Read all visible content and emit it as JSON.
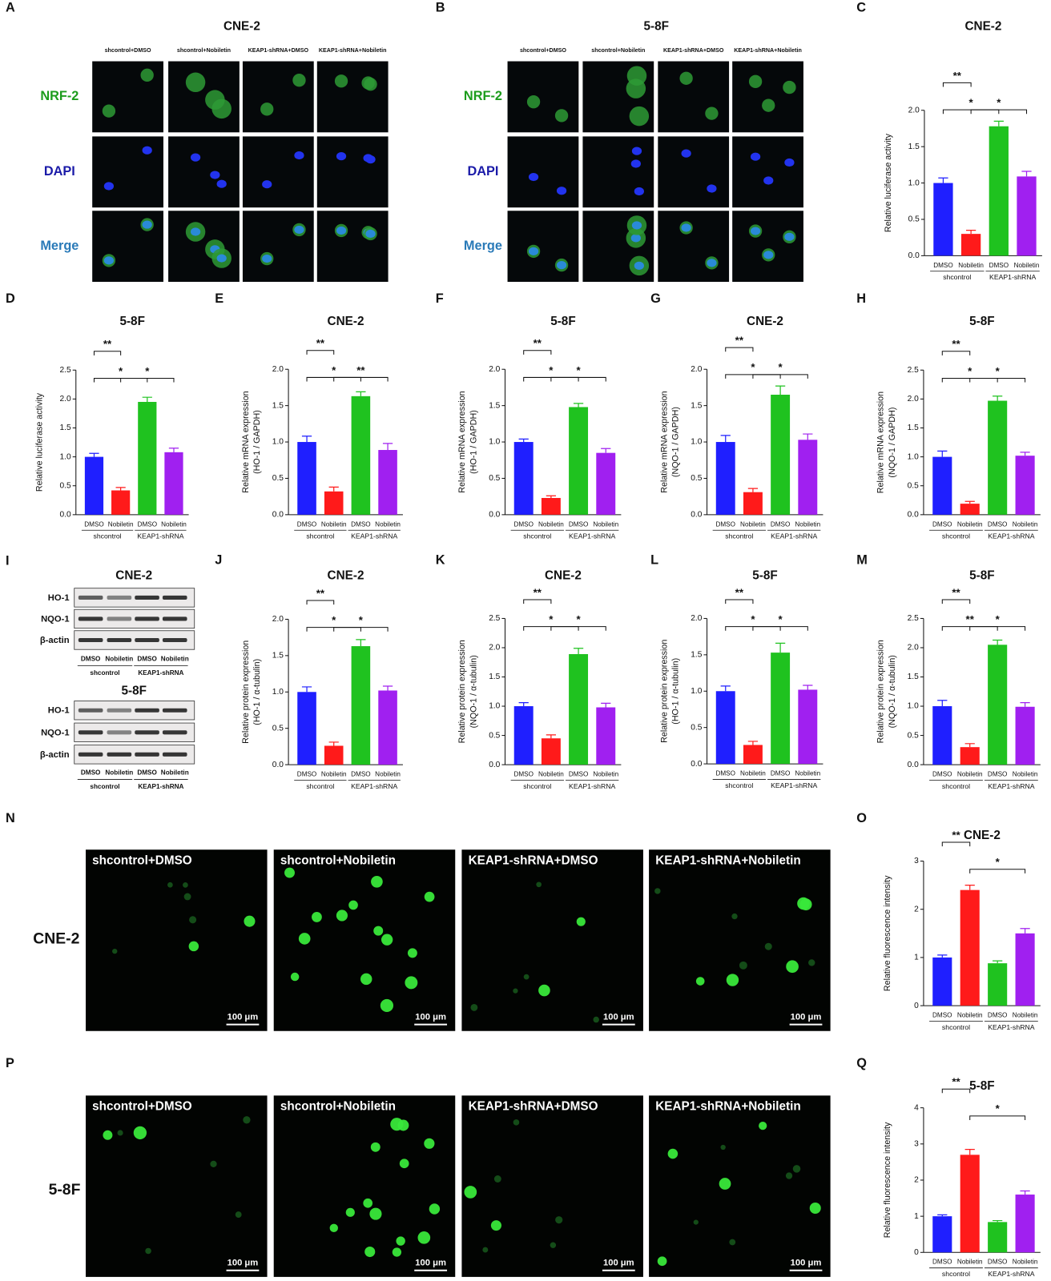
{
  "image_panels": [
    {
      "panel": "A",
      "title": "CNE-2",
      "columns": [
        "shcontrol+DMSO",
        "shcontrol+Nobiletin",
        "KEAP1-shRNA+DMSO",
        "KEAP1-shRNA+Nobiletin"
      ],
      "rows": [
        "NRF-2",
        "DAPI",
        "Merge"
      ]
    },
    {
      "panel": "B",
      "title": "5-8F",
      "columns": [
        "shcontrol+DMSO",
        "shcontrol+Nobiletin",
        "KEAP1-shRNA+DMSO",
        "KEAP1-shRNA+Nobiletin"
      ],
      "rows": [
        "NRF-2",
        "DAPI",
        "Merge"
      ]
    }
  ],
  "western_blot": {
    "panel": "I",
    "blots": [
      {
        "title": "CNE-2",
        "bands": [
          "HO-1",
          "NQO-1",
          "β-actin"
        ]
      },
      {
        "title": "5-8F",
        "bands": [
          "HO-1",
          "NQO-1",
          "β-actin"
        ]
      }
    ],
    "lanes": [
      "DMSO",
      "Nobiletin",
      "DMSO",
      "Nobiletin"
    ],
    "groups": [
      "shcontrol",
      "KEAP1-shRNA"
    ]
  },
  "fluorescence_panels": [
    {
      "panel": "N",
      "row_label": "CNE-2",
      "columns": [
        "shcontrol+DMSO",
        "shcontrol+Nobiletin",
        "KEAP1-shRNA+DMSO",
        "KEAP1-shRNA+Nobiletin"
      ],
      "scale_bar": "100 μm"
    },
    {
      "panel": "P",
      "row_label": "5-8F",
      "columns": [
        "shcontrol+DMSO",
        "shcontrol+Nobiletin",
        "KEAP1-shRNA+DMSO",
        "KEAP1-shRNA+Nobiletin"
      ],
      "scale_bar": "100 μm"
    }
  ],
  "chart_data": [
    {
      "type": "bar",
      "panel": "C",
      "title": "CNE-2",
      "ylabel": [
        "Relative luciferase activity"
      ],
      "categories": [
        "DMSO",
        "Nobiletin",
        "DMSO",
        "Nobiletin"
      ],
      "groups": [
        "shcontrol",
        "KEAP1-shRNA"
      ],
      "values": [
        1.0,
        0.3,
        1.78,
        1.09
      ],
      "errors": [
        0.07,
        0.05,
        0.07,
        0.07
      ],
      "colors": [
        "#1f1fff",
        "#ff1a1a",
        "#1fc21f",
        "#a020f0"
      ],
      "ylim": [
        0,
        2
      ],
      "yticks": [
        {
          "value": 0,
          "label": "0.0"
        },
        0.5,
        {
          "value": 1,
          "label": "1.0"
        },
        1.5,
        {
          "value": 2,
          "label": "2.0"
        }
      ],
      "comparisons": [
        {
          "bars": [
            0,
            1
          ],
          "label": "**"
        },
        {
          "bars": [
            1,
            3
          ],
          "label": "*"
        },
        {
          "bars": [
            0,
            2
          ],
          "label": "*"
        }
      ]
    },
    {
      "type": "bar",
      "panel": "D",
      "title": "5-8F",
      "ylabel": [
        "Relative luciferase activity"
      ],
      "categories": [
        "DMSO",
        "Nobiletin",
        "DMSO",
        "Nobiletin"
      ],
      "groups": [
        "shcontrol",
        "KEAP1-shRNA"
      ],
      "values": [
        1.0,
        0.42,
        1.95,
        1.08
      ],
      "errors": [
        0.06,
        0.05,
        0.08,
        0.07
      ],
      "colors": [
        "#1f1fff",
        "#ff1a1a",
        "#1fc21f",
        "#a020f0"
      ],
      "ylim": [
        0,
        2.5
      ],
      "yticks": [
        {
          "value": 0,
          "label": "0.0"
        },
        0.5,
        {
          "value": 1,
          "label": "1.0"
        },
        1.5,
        {
          "value": 2,
          "label": "2.0"
        },
        2.5
      ],
      "comparisons": [
        {
          "bars": [
            0,
            1
          ],
          "label": "**"
        },
        {
          "bars": [
            1,
            3
          ],
          "label": "*"
        },
        {
          "bars": [
            0,
            2
          ],
          "label": "*"
        }
      ]
    },
    {
      "type": "bar",
      "panel": "E",
      "title": "CNE-2",
      "ylabel": [
        "Relative mRNA expression",
        "(HO-1 / GAPDH)"
      ],
      "categories": [
        "DMSO",
        "Nobiletin",
        "DMSO",
        "Nobiletin"
      ],
      "groups": [
        "shcontrol",
        "KEAP1-shRNA"
      ],
      "values": [
        1.0,
        0.32,
        1.63,
        0.89
      ],
      "errors": [
        0.08,
        0.06,
        0.06,
        0.09
      ],
      "colors": [
        "#1f1fff",
        "#ff1a1a",
        "#1fc21f",
        "#a020f0"
      ],
      "ylim": [
        0,
        2
      ],
      "yticks": [
        {
          "value": 0,
          "label": "0.0"
        },
        0.5,
        {
          "value": 1,
          "label": "1.0"
        },
        1.5,
        {
          "value": 2,
          "label": "2.0"
        }
      ],
      "comparisons": [
        {
          "bars": [
            0,
            1
          ],
          "label": "**"
        },
        {
          "bars": [
            1,
            3
          ],
          "label": "**"
        },
        {
          "bars": [
            0,
            2
          ],
          "label": "*"
        }
      ]
    },
    {
      "type": "bar",
      "panel": "F",
      "title": "5-8F",
      "ylabel": [
        "Relative mRNA expression",
        "(HO-1 / GAPDH)"
      ],
      "categories": [
        "DMSO",
        "Nobiletin",
        "DMSO",
        "Nobiletin"
      ],
      "groups": [
        "shcontrol",
        "KEAP1-shRNA"
      ],
      "values": [
        1.0,
        0.23,
        1.48,
        0.85
      ],
      "errors": [
        0.04,
        0.03,
        0.05,
        0.06
      ],
      "colors": [
        "#1f1fff",
        "#ff1a1a",
        "#1fc21f",
        "#a020f0"
      ],
      "ylim": [
        0,
        2
      ],
      "yticks": [
        {
          "value": 0,
          "label": "0.0"
        },
        0.5,
        {
          "value": 1,
          "label": "1.0"
        },
        1.5,
        {
          "value": 2,
          "label": "2.0"
        }
      ],
      "comparisons": [
        {
          "bars": [
            0,
            1
          ],
          "label": "**"
        },
        {
          "bars": [
            1,
            3
          ],
          "label": "*"
        },
        {
          "bars": [
            0,
            2
          ],
          "label": "*"
        }
      ]
    },
    {
      "type": "bar",
      "panel": "G",
      "title": "CNE-2",
      "ylabel": [
        "Relative mRNA expression",
        "(NQO-1 / GAPDH)"
      ],
      "categories": [
        "DMSO",
        "Nobiletin",
        "DMSO",
        "Nobiletin"
      ],
      "groups": [
        "shcontrol",
        "KEAP1-shRNA"
      ],
      "values": [
        1.0,
        0.31,
        1.65,
        1.03
      ],
      "errors": [
        0.09,
        0.05,
        0.12,
        0.08
      ],
      "colors": [
        "#1f1fff",
        "#ff1a1a",
        "#1fc21f",
        "#a020f0"
      ],
      "ylim": [
        0,
        2
      ],
      "yticks": [
        {
          "value": 0,
          "label": "0.0"
        },
        0.5,
        {
          "value": 1,
          "label": "1.0"
        },
        1.5,
        {
          "value": 2,
          "label": "2.0"
        }
      ],
      "comparisons": [
        {
          "bars": [
            0,
            1
          ],
          "label": "**"
        },
        {
          "bars": [
            1,
            3
          ],
          "label": "*"
        },
        {
          "bars": [
            0,
            2
          ],
          "label": "*"
        }
      ]
    },
    {
      "type": "bar",
      "panel": "H",
      "title": "5-8F",
      "ylabel": [
        "Relative mRNA expression",
        "(NQO-1 / GAPDH)"
      ],
      "categories": [
        "DMSO",
        "Nobiletin",
        "DMSO",
        "Nobiletin"
      ],
      "groups": [
        "shcontrol",
        "KEAP1-shRNA"
      ],
      "values": [
        1.0,
        0.19,
        1.97,
        1.02
      ],
      "errors": [
        0.1,
        0.04,
        0.08,
        0.06
      ],
      "colors": [
        "#1f1fff",
        "#ff1a1a",
        "#1fc21f",
        "#a020f0"
      ],
      "ylim": [
        0,
        2.5
      ],
      "yticks": [
        {
          "value": 0,
          "label": "0.0"
        },
        0.5,
        {
          "value": 1,
          "label": "1.0"
        },
        1.5,
        {
          "value": 2,
          "label": "2.0"
        },
        2.5
      ],
      "comparisons": [
        {
          "bars": [
            0,
            1
          ],
          "label": "**"
        },
        {
          "bars": [
            1,
            3
          ],
          "label": "*"
        },
        {
          "bars": [
            0,
            2
          ],
          "label": "*"
        }
      ]
    },
    {
      "type": "bar",
      "panel": "J",
      "title": "CNE-2",
      "ylabel": [
        "Relative protein expression",
        "(HO-1 / α-tubulin)"
      ],
      "categories": [
        "DMSO",
        "Nobiletin",
        "DMSO",
        "Nobiletin"
      ],
      "groups": [
        "shcontrol",
        "KEAP1-shRNA"
      ],
      "values": [
        1.0,
        0.26,
        1.63,
        1.02
      ],
      "errors": [
        0.07,
        0.05,
        0.09,
        0.06
      ],
      "colors": [
        "#1f1fff",
        "#ff1a1a",
        "#1fc21f",
        "#a020f0"
      ],
      "ylim": [
        0,
        2
      ],
      "yticks": [
        {
          "value": 0,
          "label": "0.0"
        },
        0.5,
        {
          "value": 1,
          "label": "1.0"
        },
        1.5,
        {
          "value": 2,
          "label": "2.0"
        }
      ],
      "comparisons": [
        {
          "bars": [
            0,
            1
          ],
          "label": "**"
        },
        {
          "bars": [
            1,
            3
          ],
          "label": "*"
        },
        {
          "bars": [
            0,
            2
          ],
          "label": "*"
        }
      ]
    },
    {
      "type": "bar",
      "panel": "K",
      "title": "CNE-2",
      "ylabel": [
        "Relative protein expression",
        "(NQO-1 / α-tubulin)"
      ],
      "categories": [
        "DMSO",
        "Nobiletin",
        "DMSO",
        "Nobiletin"
      ],
      "groups": [
        "shcontrol",
        "KEAP1-shRNA"
      ],
      "values": [
        1.0,
        0.45,
        1.89,
        0.98
      ],
      "errors": [
        0.06,
        0.06,
        0.1,
        0.07
      ],
      "colors": [
        "#1f1fff",
        "#ff1a1a",
        "#1fc21f",
        "#a020f0"
      ],
      "ylim": [
        0,
        2.5
      ],
      "yticks": [
        {
          "value": 0,
          "label": "0.0"
        },
        0.5,
        {
          "value": 1,
          "label": "1.0"
        },
        1.5,
        {
          "value": 2,
          "label": "2.0"
        },
        2.5
      ],
      "comparisons": [
        {
          "bars": [
            0,
            1
          ],
          "label": "**"
        },
        {
          "bars": [
            1,
            3
          ],
          "label": "*"
        },
        {
          "bars": [
            0,
            2
          ],
          "label": "*"
        }
      ]
    },
    {
      "type": "bar",
      "panel": "L",
      "title": "5-8F",
      "ylabel": [
        "Relative protein expression",
        "(HO-1 / α-tubulin)"
      ],
      "categories": [
        "DMSO",
        "Nobiletin",
        "DMSO",
        "Nobiletin"
      ],
      "groups": [
        "shcontrol",
        "KEAP1-shRNA"
      ],
      "values": [
        1.0,
        0.26,
        1.53,
        1.02
      ],
      "errors": [
        0.07,
        0.05,
        0.13,
        0.06
      ],
      "colors": [
        "#1f1fff",
        "#ff1a1a",
        "#1fc21f",
        "#a020f0"
      ],
      "ylim": [
        0,
        2
      ],
      "yticks": [
        {
          "value": 0,
          "label": "0.0"
        },
        0.5,
        {
          "value": 1,
          "label": "1.0"
        },
        1.5,
        {
          "value": 2,
          "label": "2.0"
        }
      ],
      "comparisons": [
        {
          "bars": [
            0,
            1
          ],
          "label": "**"
        },
        {
          "bars": [
            1,
            3
          ],
          "label": "*"
        },
        {
          "bars": [
            0,
            2
          ],
          "label": "*"
        }
      ]
    },
    {
      "type": "bar",
      "panel": "M",
      "title": "5-8F",
      "ylabel": [
        "Relative protein expression",
        "(NQO-1 / α-tubulin)"
      ],
      "categories": [
        "DMSO",
        "Nobiletin",
        "DMSO",
        "Nobiletin"
      ],
      "groups": [
        "shcontrol",
        "KEAP1-shRNA"
      ],
      "values": [
        1.0,
        0.3,
        2.05,
        0.99
      ],
      "errors": [
        0.1,
        0.06,
        0.08,
        0.07
      ],
      "colors": [
        "#1f1fff",
        "#ff1a1a",
        "#1fc21f",
        "#a020f0"
      ],
      "ylim": [
        0,
        2.5
      ],
      "yticks": [
        {
          "value": 0,
          "label": "0.0"
        },
        0.5,
        {
          "value": 1,
          "label": "1.0"
        },
        1.5,
        {
          "value": 2,
          "label": "2.0"
        },
        2.5
      ],
      "comparisons": [
        {
          "bars": [
            0,
            1
          ],
          "label": "**"
        },
        {
          "bars": [
            1,
            3
          ],
          "label": "*"
        },
        {
          "bars": [
            0,
            2
          ],
          "label": "**"
        }
      ]
    },
    {
      "type": "bar",
      "panel": "O",
      "title": "CNE-2",
      "ylabel": [
        "Relative fluorescence intensity"
      ],
      "categories": [
        "DMSO",
        "Nobiletin",
        "DMSO",
        "Nobiletin"
      ],
      "groups": [
        "shcontrol",
        "KEAP1-shRNA"
      ],
      "values": [
        1.0,
        2.4,
        0.88,
        1.5
      ],
      "errors": [
        0.05,
        0.1,
        0.05,
        0.1
      ],
      "colors": [
        "#1f1fff",
        "#ff1a1a",
        "#1fc21f",
        "#a020f0"
      ],
      "ylim": [
        0,
        3
      ],
      "yticks": [
        0,
        1,
        2,
        3
      ],
      "comparisons": [
        {
          "bars": [
            0,
            1
          ],
          "label": "**"
        },
        {
          "bars": [
            1,
            3
          ],
          "label": "*"
        }
      ]
    },
    {
      "type": "bar",
      "panel": "Q",
      "title": "5-8F",
      "ylabel": [
        "Relative fluorescence intensity"
      ],
      "categories": [
        "DMSO",
        "Nobiletin",
        "DMSO",
        "Nobiletin"
      ],
      "groups": [
        "shcontrol",
        "KEAP1-shRNA"
      ],
      "values": [
        1.0,
        2.7,
        0.84,
        1.6
      ],
      "errors": [
        0.04,
        0.15,
        0.04,
        0.1
      ],
      "colors": [
        "#1f1fff",
        "#ff1a1a",
        "#1fc21f",
        "#a020f0"
      ],
      "ylim": [
        0,
        4
      ],
      "yticks": [
        0,
        1,
        2,
        3,
        4
      ],
      "comparisons": [
        {
          "bars": [
            0,
            1
          ],
          "label": "**"
        },
        {
          "bars": [
            1,
            3
          ],
          "label": "*"
        }
      ]
    }
  ]
}
